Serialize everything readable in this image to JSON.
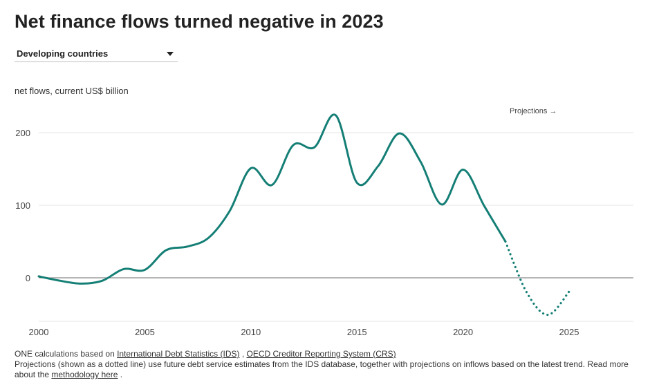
{
  "header": {
    "title": "Net finance flows turned negative in 2023"
  },
  "filter": {
    "selected": "Developing countries"
  },
  "colors": {
    "line": "#157f76",
    "grid": "#e6e6e6",
    "zero": "#8a8a8a",
    "axis_text": "#444444"
  },
  "chart_data": {
    "type": "line",
    "title": "Net finance flows turned negative in 2023",
    "ylabel": "net flows, current US$ billion",
    "xlabel": "",
    "xlim": [
      2000,
      2028
    ],
    "ylim": [
      -60,
      235
    ],
    "x_ticks": [
      2000,
      2005,
      2010,
      2015,
      2020,
      2025
    ],
    "y_ticks": [
      0,
      100,
      200
    ],
    "grid": "horizontal",
    "annotation": "Projections →",
    "series": [
      {
        "style": "solid",
        "x": [
          2000,
          2001,
          2002,
          2003,
          2004,
          2005,
          2006,
          2007,
          2008,
          2009,
          2010,
          2011,
          2012,
          2013,
          2014,
          2015,
          2016,
          2017,
          2018,
          2019,
          2020,
          2021,
          2022
        ],
        "y": [
          2,
          -4,
          -8,
          -4,
          12,
          11,
          38,
          43,
          55,
          92,
          151,
          128,
          183,
          180,
          224,
          131,
          154,
          199,
          160,
          101,
          149,
          99,
          50
        ]
      },
      {
        "style": "dotted",
        "name": "Projections",
        "x": [
          2022,
          2023,
          2024,
          2025
        ],
        "y": [
          50,
          -20,
          -51,
          -19
        ]
      }
    ]
  },
  "footer": {
    "source_prefix": "ONE calculations based on ",
    "source_link_1": "International Debt Statistics (IDS)",
    "source_sep": " , ",
    "source_link_2": "OECD Creditor Reporting System (CRS)",
    "note_text": "Projections (shown as a dotted line) use future debt service estimates from the IDS database, together with projections on inflows based on the latest trend. Read more about the ",
    "note_link": "methodology here",
    "note_end": " ."
  }
}
